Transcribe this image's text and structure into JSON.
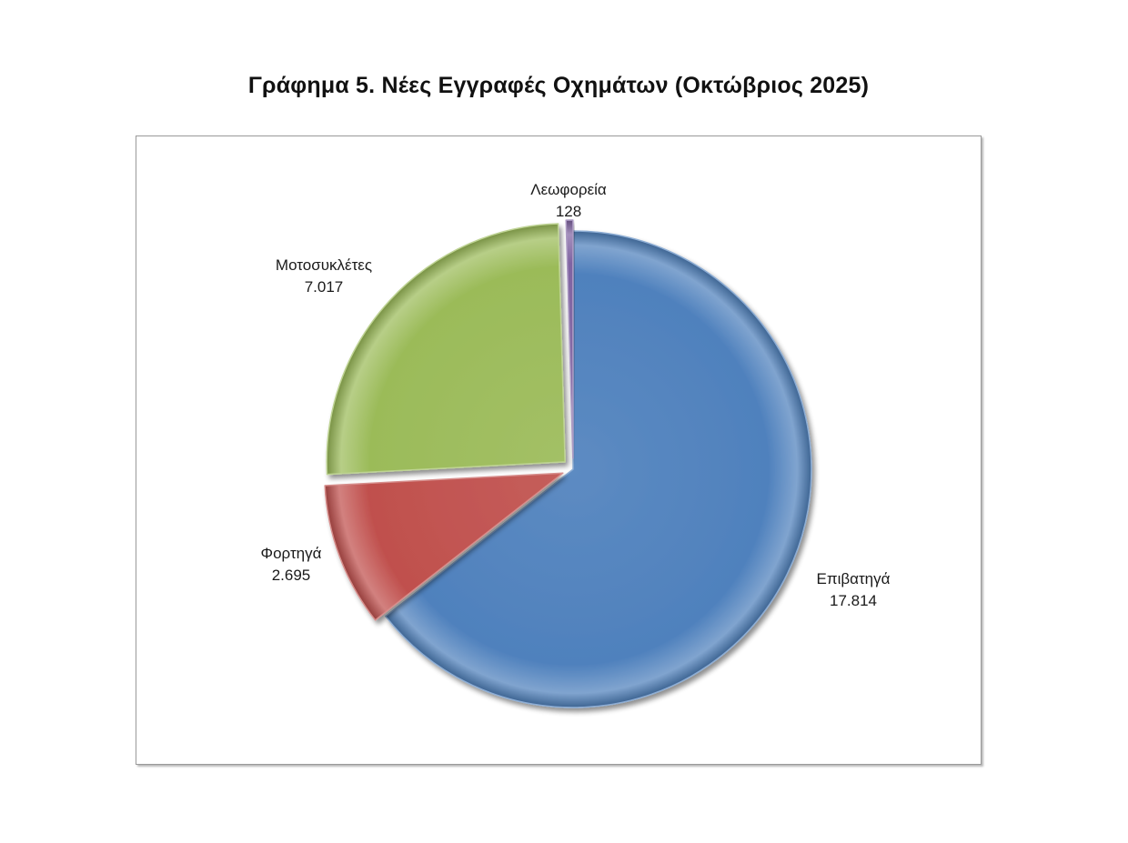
{
  "chart_data": {
    "type": "pie",
    "title": "Γράφημα 5. Νέες Εγγραφές Οχημάτων (Οκτώβριος 2025)",
    "slices": [
      {
        "name": "Επιβατηγά",
        "value_label": "17.814",
        "value": 17814,
        "color": "#4f81bd",
        "exploded": false
      },
      {
        "name": "Φορτηγά",
        "value_label": "2.695",
        "value": 2695,
        "color": "#c0504d",
        "exploded": true
      },
      {
        "name": "Μοτοσυκλέτες",
        "value_label": "7.017",
        "value": 7017,
        "color": "#9bbb59",
        "exploded": true
      },
      {
        "name": "Λεωφορεία",
        "value_label": "128",
        "value": 128,
        "color": "#8064a2",
        "exploded": true
      }
    ],
    "legend": "none",
    "style": "3d-shaded"
  }
}
